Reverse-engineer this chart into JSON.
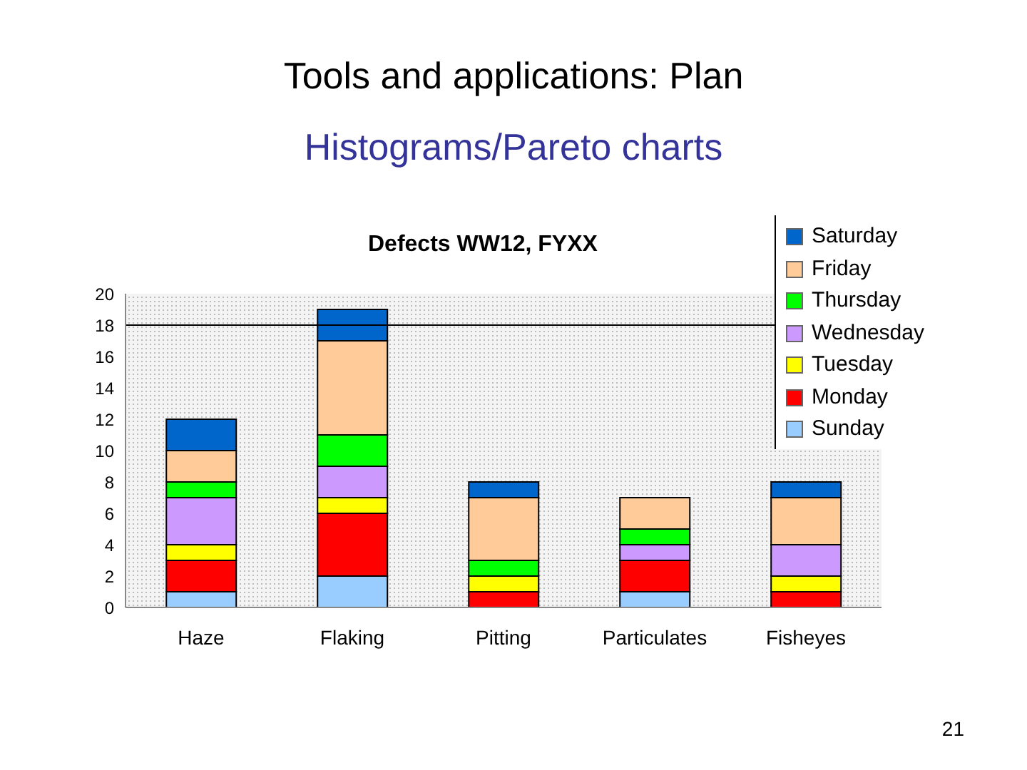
{
  "chart_data": {
    "type": "bar",
    "title": "Defects WW12, FYXX",
    "stacked": true,
    "categories": [
      "Haze",
      "Flaking",
      "Pitting",
      "Particulates",
      "Fisheyes"
    ],
    "series": [
      {
        "name": "Sunday",
        "color": "#99ccff",
        "values": [
          1,
          2,
          0,
          1,
          0
        ]
      },
      {
        "name": "Monday",
        "color": "#ff0000",
        "values": [
          2,
          4,
          1,
          2,
          1
        ]
      },
      {
        "name": "Tuesday",
        "color": "#ffff00",
        "values": [
          1,
          1,
          1,
          0,
          1
        ]
      },
      {
        "name": "Wednesday",
        "color": "#cc99ff",
        "values": [
          3,
          2,
          0,
          1,
          2
        ]
      },
      {
        "name": "Thursday",
        "color": "#00ff00",
        "values": [
          1,
          2,
          1,
          1,
          0
        ]
      },
      {
        "name": "Friday",
        "color": "#ffcc99",
        "values": [
          2,
          6,
          4,
          2,
          3
        ]
      },
      {
        "name": "Saturday",
        "color": "#0066cc",
        "values": [
          2,
          2,
          1,
          0,
          1
        ]
      }
    ],
    "ylim": [
      0,
      20
    ],
    "yticks": [
      0,
      2,
      4,
      6,
      8,
      10,
      12,
      14,
      16,
      18,
      20
    ],
    "ref_lines": [
      {
        "axis": "y",
        "value": 18,
        "color": "#000000"
      }
    ],
    "grid": false,
    "legend": "top right",
    "annotations": [
      "Tools and applications: Plan",
      "Histograms/Pareto charts",
      "21"
    ]
  }
}
